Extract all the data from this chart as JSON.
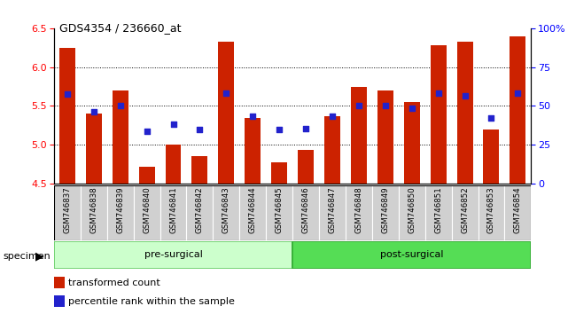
{
  "title": "GDS4354 / 236660_at",
  "samples": [
    "GSM746837",
    "GSM746838",
    "GSM746839",
    "GSM746840",
    "GSM746841",
    "GSM746842",
    "GSM746843",
    "GSM746844",
    "GSM746845",
    "GSM746846",
    "GSM746847",
    "GSM746848",
    "GSM746849",
    "GSM746850",
    "GSM746851",
    "GSM746852",
    "GSM746853",
    "GSM746854"
  ],
  "bar_values": [
    6.25,
    5.4,
    5.7,
    4.72,
    5.0,
    4.85,
    6.33,
    5.35,
    4.78,
    4.93,
    5.37,
    5.75,
    5.7,
    5.55,
    6.28,
    6.33,
    5.2,
    6.4
  ],
  "percentile_values": [
    5.65,
    5.42,
    5.5,
    5.18,
    5.27,
    5.2,
    5.67,
    5.37,
    5.2,
    5.21,
    5.37,
    5.5,
    5.5,
    5.47,
    5.67,
    5.63,
    5.35,
    5.67
  ],
  "pre_surgical_count": 9,
  "post_surgical_count": 9,
  "y_min": 4.5,
  "y_max": 6.5,
  "bar_color": "#cc2200",
  "dot_color": "#2222cc",
  "pre_surgical_color_light": "#ccffcc",
  "pre_surgical_border": "#66cc66",
  "post_surgical_color": "#55dd55",
  "post_surgical_border": "#33aa33",
  "tick_label_bg": "#d0d0d0",
  "y_ticks_left": [
    4.5,
    5.0,
    5.5,
    6.0,
    6.5
  ],
  "y_ticks_right": [
    0,
    25,
    50,
    75,
    100
  ],
  "legend_red_label": "transformed count",
  "legend_blue_label": "percentile rank within the sample",
  "specimen_label": "specimen"
}
